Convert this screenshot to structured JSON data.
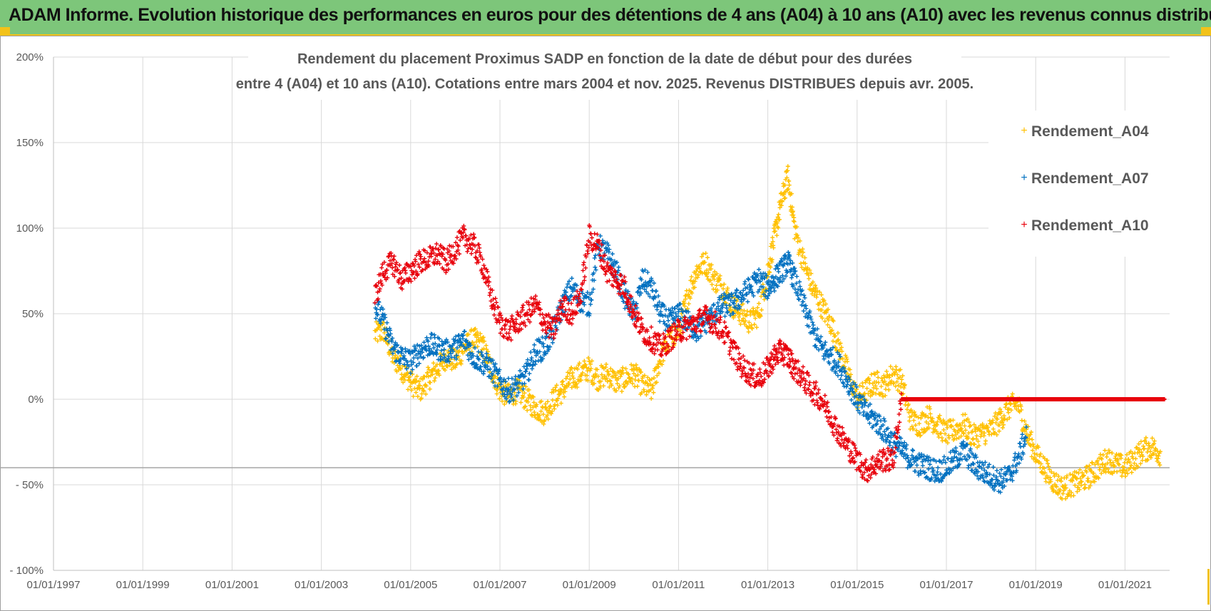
{
  "header": {
    "title": "ADAM Informe. Evolution historique des performances en euros pour des détentions de 4 ans (A04) à 10 ans (A10) avec les revenus connus distribués"
  },
  "colors": {
    "banner": "#7dc67a",
    "accent": "#f2c21a",
    "A04": "#ffc000",
    "A07": "#0070c0",
    "A10": "#e8000b"
  },
  "chart_data": {
    "type": "scatter",
    "title_lines": [
      "Rendement du placement Proximus SADP en fonction de la date de début pour des durées",
      "entre 4 (A04) et 10 ans (A10).  Cotations entre mars 2004 et nov. 2025. Revenus  DISTRIBUES depuis avr. 2005."
    ],
    "x_ticks": [
      "01/01/1997",
      "01/01/1999",
      "01/01/2001",
      "01/01/2003",
      "01/01/2005",
      "01/01/2007",
      "01/01/2009",
      "01/01/2011",
      "01/01/2013",
      "01/01/2015",
      "01/01/2017",
      "01/01/2019",
      "01/01/2021"
    ],
    "y_ticks": [
      "200%",
      "150%",
      "100%",
      "50%",
      "0%",
      "- 50%",
      "- 100%"
    ],
    "xlim": [
      1997.0,
      2022.0
    ],
    "ylim": [
      -100,
      200
    ],
    "reference_line_y": -40,
    "marker": "+",
    "series": [
      {
        "name": "Rendement_A04",
        "color": "#ffc000",
        "x": [
          2004.2,
          2004.4,
          2004.6,
          2004.8,
          2005.0,
          2005.2,
          2005.4,
          2005.6,
          2005.8,
          2006.0,
          2006.2,
          2006.4,
          2006.6,
          2006.8,
          2007.0,
          2007.2,
          2007.4,
          2007.6,
          2007.8,
          2008.0,
          2008.2,
          2008.4,
          2008.6,
          2008.8,
          2009.0,
          2009.2,
          2009.4,
          2009.6,
          2009.8,
          2010.0,
          2010.2,
          2010.4,
          2010.6,
          2010.8,
          2011.0,
          2011.2,
          2011.4,
          2011.6,
          2011.8,
          2012.0,
          2012.2,
          2012.4,
          2012.6,
          2012.8,
          2013.0,
          2013.15,
          2013.3,
          2013.45,
          2013.6,
          2013.8,
          2014.0,
          2014.2,
          2014.4,
          2014.6,
          2014.8,
          2015.0,
          2015.2,
          2015.4,
          2015.6,
          2015.8,
          2016.0,
          2016.2,
          2016.4,
          2016.6,
          2016.8,
          2017.0,
          2017.2,
          2017.4,
          2017.6,
          2017.8,
          2018.0,
          2018.2,
          2018.4,
          2018.6,
          2018.8,
          2019.0,
          2019.2,
          2019.4,
          2019.6,
          2019.8,
          2020.0,
          2020.2,
          2020.4,
          2020.6,
          2020.8,
          2021.0,
          2021.2,
          2021.4,
          2021.6,
          2021.8
        ],
        "values": [
          38,
          40,
          25,
          18,
          10,
          5,
          12,
          18,
          25,
          22,
          30,
          35,
          32,
          18,
          5,
          2,
          5,
          0,
          -5,
          -8,
          0,
          5,
          12,
          15,
          18,
          12,
          15,
          10,
          12,
          15,
          8,
          5,
          25,
          35,
          40,
          60,
          75,
          80,
          70,
          65,
          55,
          50,
          45,
          50,
          75,
          95,
          115,
          130,
          100,
          80,
          65,
          55,
          45,
          30,
          15,
          0,
          5,
          10,
          8,
          15,
          10,
          -12,
          -15,
          -10,
          -15,
          -20,
          -18,
          -15,
          -22,
          -20,
          -18,
          -12,
          -5,
          -2,
          -20,
          -32,
          -40,
          -48,
          -52,
          -50,
          -48,
          -45,
          -40,
          -35,
          -38,
          -40,
          -35,
          -30,
          -28,
          -32
        ]
      },
      {
        "name": "Rendement_A07",
        "color": "#0070c0",
        "x": [
          2004.2,
          2004.4,
          2004.6,
          2004.8,
          2005.0,
          2005.2,
          2005.4,
          2005.6,
          2005.8,
          2006.0,
          2006.2,
          2006.4,
          2006.6,
          2006.8,
          2007.0,
          2007.2,
          2007.4,
          2007.6,
          2007.8,
          2008.0,
          2008.2,
          2008.4,
          2008.6,
          2008.8,
          2009.0,
          2009.2,
          2009.4,
          2009.6,
          2009.8,
          2010.0,
          2010.2,
          2010.4,
          2010.6,
          2010.8,
          2011.0,
          2011.2,
          2011.4,
          2011.6,
          2011.8,
          2012.0,
          2012.2,
          2012.4,
          2012.6,
          2012.8,
          2013.0,
          2013.15,
          2013.3,
          2013.45,
          2013.6,
          2013.8,
          2014.0,
          2014.2,
          2014.4,
          2014.6,
          2014.8,
          2015.0,
          2015.2,
          2015.4,
          2015.6,
          2015.8,
          2016.0,
          2016.2,
          2016.4,
          2016.6,
          2016.8,
          2017.0,
          2017.2,
          2017.4,
          2017.6,
          2017.8,
          2018.0,
          2018.2,
          2018.4,
          2018.6,
          2018.8
        ],
        "values": [
          55,
          45,
          30,
          25,
          22,
          28,
          32,
          30,
          28,
          30,
          35,
          25,
          22,
          18,
          10,
          5,
          8,
          15,
          28,
          30,
          40,
          55,
          65,
          58,
          55,
          90,
          85,
          75,
          60,
          50,
          70,
          65,
          50,
          45,
          50,
          45,
          40,
          45,
          50,
          55,
          55,
          60,
          65,
          70,
          65,
          70,
          75,
          80,
          70,
          55,
          40,
          30,
          25,
          20,
          10,
          0,
          -8,
          -12,
          -18,
          -25,
          -30,
          -35,
          -38,
          -40,
          -42,
          -40,
          -35,
          -30,
          -38,
          -42,
          -45,
          -48,
          -45,
          -35,
          -20
        ]
      },
      {
        "name": "Rendement_A10",
        "color": "#e8000b",
        "x": [
          2004.2,
          2004.4,
          2004.6,
          2004.8,
          2005.0,
          2005.2,
          2005.4,
          2005.6,
          2005.8,
          2006.0,
          2006.2,
          2006.4,
          2006.6,
          2006.8,
          2007.0,
          2007.2,
          2007.4,
          2007.6,
          2007.8,
          2008.0,
          2008.2,
          2008.4,
          2008.6,
          2008.8,
          2009.0,
          2009.2,
          2009.4,
          2009.6,
          2009.8,
          2010.0,
          2010.2,
          2010.4,
          2010.6,
          2010.8,
          2011.0,
          2011.2,
          2011.4,
          2011.6,
          2011.8,
          2012.0,
          2012.2,
          2012.4,
          2012.6,
          2012.8,
          2013.0,
          2013.15,
          2013.3,
          2013.45,
          2013.6,
          2013.8,
          2014.0,
          2014.2,
          2014.4,
          2014.6,
          2014.8,
          2015.0,
          2015.2,
          2015.4,
          2015.6,
          2015.8,
          2016.0,
          2016.5,
          2017.0,
          2017.5,
          2018.0,
          2018.5,
          2019.0,
          2019.5,
          2020.0,
          2020.5,
          2021.0,
          2021.5,
          2021.9
        ],
        "values": [
          60,
          75,
          80,
          70,
          75,
          80,
          82,
          85,
          80,
          88,
          95,
          90,
          80,
          60,
          45,
          40,
          45,
          50,
          55,
          45,
          40,
          55,
          50,
          60,
          95,
          90,
          75,
          70,
          65,
          50,
          40,
          35,
          30,
          35,
          40,
          42,
          45,
          48,
          45,
          40,
          30,
          20,
          15,
          12,
          18,
          25,
          28,
          25,
          18,
          12,
          5,
          0,
          -10,
          -20,
          -28,
          -35,
          -42,
          -38,
          -35,
          -36,
          0,
          0,
          0,
          0,
          0,
          0,
          0,
          0,
          0,
          0,
          0,
          0,
          0
        ]
      }
    ]
  }
}
